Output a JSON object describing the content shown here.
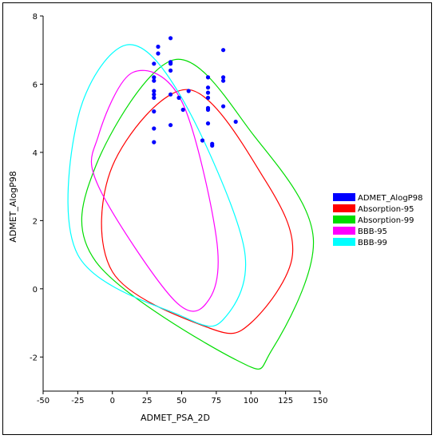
{
  "chart_data": {
    "type": "scatter",
    "title": "",
    "xlabel": "ADMET_PSA_2D",
    "ylabel": "ADMET_AlogP98",
    "xlim": [
      -50,
      150
    ],
    "ylim": [
      -3,
      8
    ],
    "x_ticks": [
      "-50",
      "-25",
      "0",
      "25",
      "50",
      "75",
      "100",
      "125",
      "150"
    ],
    "y_ticks": [
      "-2",
      "0",
      "2",
      "4",
      "6",
      "8"
    ],
    "legend_position": "right",
    "series": [
      {
        "name": "ADMET_AlogP98",
        "kind": "points",
        "color": "#0000ff",
        "points": [
          [
            30,
            6.6
          ],
          [
            30,
            6.2
          ],
          [
            30,
            6.1
          ],
          [
            30,
            5.8
          ],
          [
            30,
            5.7
          ],
          [
            30,
            5.6
          ],
          [
            30,
            5.2
          ],
          [
            30,
            4.7
          ],
          [
            30,
            4.3
          ],
          [
            33,
            7.1
          ],
          [
            33,
            6.9
          ],
          [
            42,
            7.35
          ],
          [
            42,
            6.65
          ],
          [
            42,
            6.6
          ],
          [
            42,
            6.4
          ],
          [
            42,
            5.7
          ],
          [
            42,
            4.8
          ],
          [
            48,
            5.6
          ],
          [
            51,
            5.25
          ],
          [
            55,
            5.8
          ],
          [
            65,
            4.35
          ],
          [
            69,
            6.2
          ],
          [
            69,
            5.9
          ],
          [
            69,
            5.75
          ],
          [
            69,
            5.6
          ],
          [
            69,
            5.3
          ],
          [
            69,
            5.25
          ],
          [
            69,
            4.85
          ],
          [
            72,
            4.25
          ],
          [
            72,
            4.2
          ],
          [
            80,
            7.0
          ],
          [
            80,
            6.2
          ],
          [
            80,
            6.1
          ],
          [
            80,
            5.35
          ],
          [
            89,
            4.9
          ]
        ]
      },
      {
        "name": "Absorption-95",
        "kind": "ellipse",
        "color": "#ff0000",
        "outline": [
          [
            0,
            3.6
          ],
          [
            55,
            5.84
          ],
          [
            110,
            3.2
          ],
          [
            130,
            1.0
          ],
          [
            100,
            -1.0
          ],
          [
            70,
            -1.15
          ],
          [
            0,
            0.5
          ]
        ]
      },
      {
        "name": "Absorption-99",
        "kind": "ellipse",
        "color": "#00dd00",
        "outline": [
          [
            -12,
            3.6
          ],
          [
            45,
            6.72
          ],
          [
            102,
            4.5
          ],
          [
            145,
            1.5
          ],
          [
            115,
            -1.8
          ],
          [
            90,
            -2.1
          ],
          [
            -12,
            0.8
          ]
        ]
      },
      {
        "name": "BBB-95",
        "kind": "ellipse",
        "color": "#ff00ff",
        "outline": [
          [
            -10,
            4.5
          ],
          [
            15,
            6.35
          ],
          [
            50,
            5.5
          ],
          [
            75,
            1.5
          ],
          [
            70,
            -0.3
          ],
          [
            45,
            -0.35
          ],
          [
            -10,
            3.0
          ]
        ]
      },
      {
        "name": "BBB-99",
        "kind": "ellipse",
        "color": "#00ffff",
        "outline": [
          [
            -25,
            5.0
          ],
          [
            10,
            7.15
          ],
          [
            50,
            5.6
          ],
          [
            95,
            1.2
          ],
          [
            80,
            -0.9
          ],
          [
            50,
            -0.8
          ],
          [
            -25,
            1.0
          ]
        ]
      }
    ]
  }
}
